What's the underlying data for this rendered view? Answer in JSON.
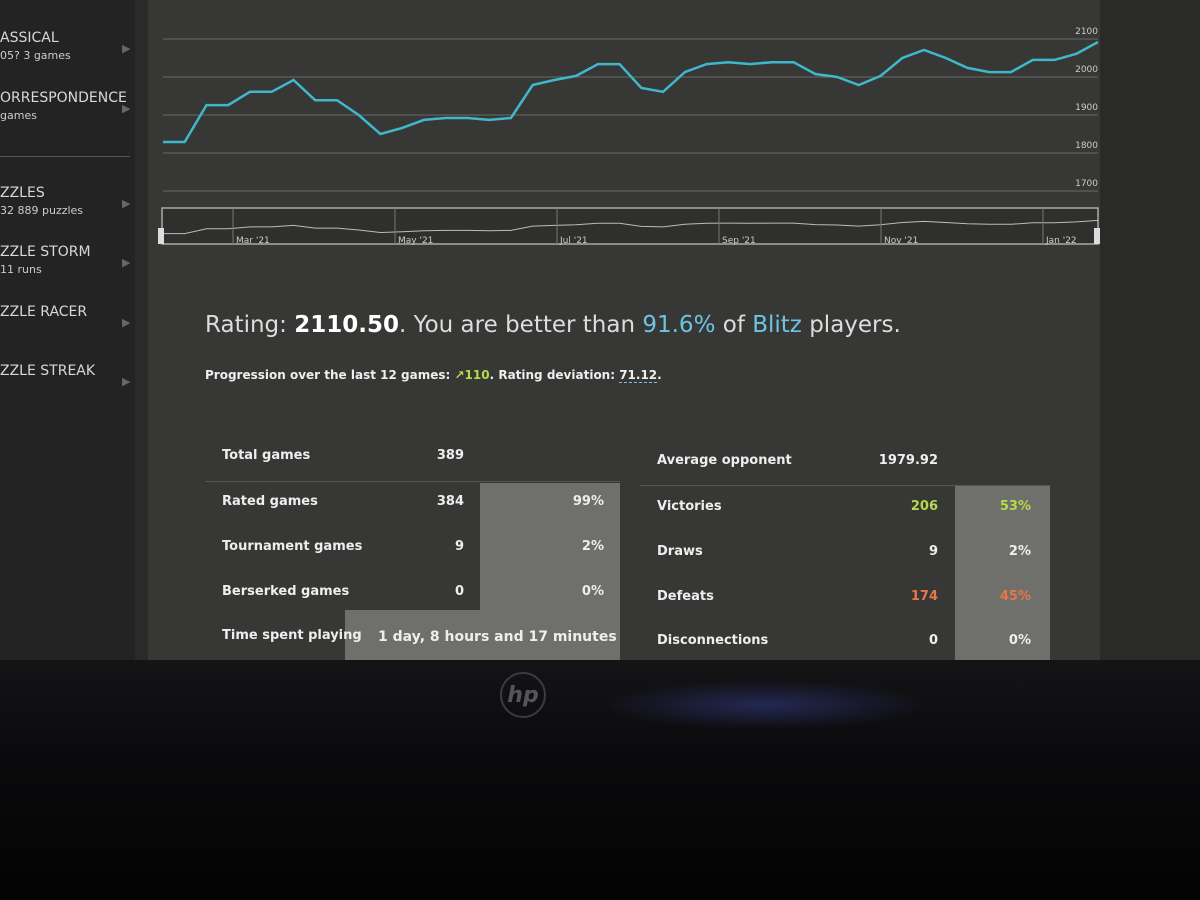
{
  "sidebar": [
    {
      "title": "ASSICAL",
      "sub": "05? 3 games"
    },
    {
      "title": "ORRESPONDENCE",
      "sub": "games"
    },
    {
      "title": "ZZLES",
      "sub": "32 889 puzzles"
    },
    {
      "title": "ZZLE STORM",
      "sub": "11 runs"
    },
    {
      "title": "ZZLE RACER"
    },
    {
      "title": "ZZLE STREAK"
    }
  ],
  "chart_data": {
    "type": "line",
    "color": "#3fb8cc",
    "grid": true,
    "values": [
      1829,
      1829,
      1926,
      1926,
      1961,
      1961,
      1992,
      1939,
      1939,
      1900,
      1850,
      1866,
      1887,
      1892,
      1892,
      1887,
      1892,
      1979,
      1992,
      2003,
      2034,
      2034,
      1971,
      1961,
      2013,
      2034,
      2039,
      2034,
      2039,
      2039,
      2008,
      2000,
      1979,
      2003,
      2050,
      2071,
      2050,
      2024,
      2013,
      2013,
      2045,
      2045,
      2061,
      2092
    ],
    "ylim": [
      1680,
      2128
    ],
    "yticks": [
      1700,
      1800,
      1900,
      2000,
      2100
    ],
    "navigator_labels": [
      "Mar '21",
      "May '21",
      "Jul '21",
      "Sep '21",
      "Nov '21",
      "Jan '22"
    ]
  },
  "rating": {
    "label": "Rating: ",
    "value": "2110.50",
    "mid": ". You are better than ",
    "percent": "91.6%",
    "of": " of ",
    "variant": "Blitz",
    "end": " players."
  },
  "progression": {
    "label": "Progression over the last 12 games: ",
    "value": "110",
    "mid": ". Rating deviation: ",
    "deviation": "71.12",
    "end": "."
  },
  "stats_left": [
    [
      "Total games",
      "389"
    ],
    [
      "Rated games",
      "384",
      "99%"
    ],
    [
      "Tournament games",
      "9",
      "2%"
    ],
    [
      "Berserked games",
      "0",
      "0%"
    ],
    [
      "Time spent playing",
      "1 day, 8 hours and 17 minutes"
    ]
  ],
  "stats_right": [
    [
      "Average opponent",
      "1979.92"
    ],
    [
      "Victories",
      "206",
      "53%"
    ],
    [
      "Draws",
      "9",
      "2%"
    ],
    [
      "Defeats",
      "174",
      "45%"
    ],
    [
      "Disconnections",
      "0",
      "0%"
    ]
  ],
  "bezel": {
    "logo": "hp"
  }
}
